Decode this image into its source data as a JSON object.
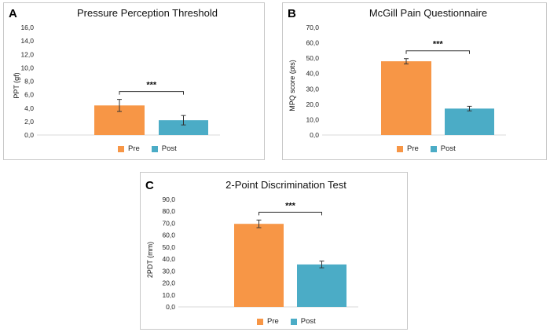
{
  "colors": {
    "pre": "#f79646",
    "post": "#4bacc6",
    "axis": "#d9d9d9",
    "error": "#333333"
  },
  "chart_data": [
    {
      "panel": "A",
      "type": "bar",
      "title": "Pressure Perception Threshold",
      "ylabel": "PPT (gf)",
      "categories": [
        "Pre",
        "Post"
      ],
      "values": [
        4.4,
        2.2
      ],
      "errors": [
        0.9,
        0.7
      ],
      "ylim": [
        0,
        16
      ],
      "yticks": [
        "0,0",
        "2,0",
        "4,0",
        "6,0",
        "8,0",
        "10,0",
        "12,0",
        "14,0",
        "16,0"
      ],
      "significance": "***",
      "legend": [
        "Pre",
        "Post"
      ],
      "grid": false
    },
    {
      "panel": "B",
      "type": "bar",
      "title": "McGill Pain Questionnaire",
      "ylabel": "MPQ score (pts)",
      "categories": [
        "Pre",
        "Post"
      ],
      "values": [
        48,
        17.2
      ],
      "errors": [
        1.7,
        1.5
      ],
      "ylim": [
        0,
        70
      ],
      "yticks": [
        "0,0",
        "10,0",
        "20,0",
        "30,0",
        "40,0",
        "50,0",
        "60,0",
        "70,0"
      ],
      "significance": "***",
      "legend": [
        "Pre",
        "Post"
      ],
      "grid": false
    },
    {
      "panel": "C",
      "type": "bar",
      "title": "2-Point Discrimination Test",
      "ylabel": "2PDT (mm)",
      "categories": [
        "Pre",
        "Post"
      ],
      "values": [
        69.5,
        35.5
      ],
      "errors": [
        3.2,
        2.8
      ],
      "ylim": [
        0,
        90
      ],
      "yticks": [
        "0,0",
        "10,0",
        "20,0",
        "30,0",
        "40,0",
        "50,0",
        "60,0",
        "70,0",
        "80,0",
        "90,0"
      ],
      "significance": "***",
      "legend": [
        "Pre",
        "Post"
      ],
      "grid": false
    }
  ]
}
